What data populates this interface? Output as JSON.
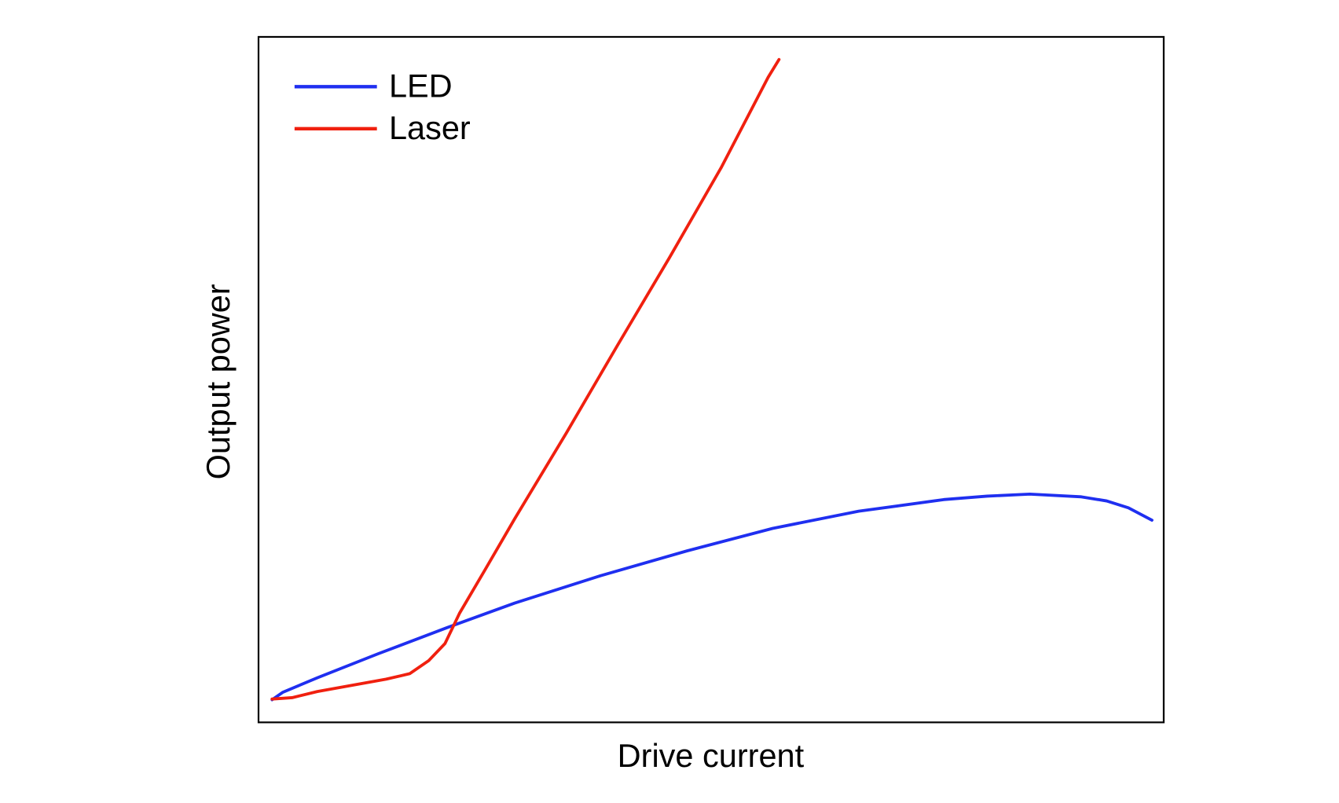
{
  "chart_data": {
    "type": "line",
    "x_label": "Drive current",
    "y_label": "Output power",
    "xlim": [
      0,
      100
    ],
    "ylim": [
      0,
      100
    ],
    "legend": "upper left",
    "series": [
      {
        "name": "LED",
        "color": "#1f2ff0",
        "x": [
          1.5,
          2.7,
          6.5,
          13.2,
          20.8,
          28.3,
          37.8,
          47.3,
          56.8,
          66.3,
          75.7,
          80.5,
          85.2,
          90.9,
          93.7,
          96.1,
          98.7
        ],
        "values": [
          3.3,
          4.4,
          6.5,
          10.0,
          13.8,
          17.4,
          21.4,
          25.0,
          28.3,
          30.8,
          32.5,
          33.0,
          33.3,
          32.9,
          32.3,
          31.3,
          29.5
        ]
      },
      {
        "name": "Laser",
        "color": "#f0200f",
        "x": [
          1.5,
          3.7,
          6.5,
          10.3,
          14.1,
          16.7,
          18.8,
          20.6,
          22.2,
          25.0,
          28.3,
          34.0,
          39.7,
          45.4,
          51.1,
          56.3,
          57.5
        ],
        "values": [
          3.4,
          3.6,
          4.5,
          5.4,
          6.3,
          7.1,
          9.0,
          11.5,
          15.9,
          22.2,
          29.7,
          42.2,
          55.1,
          67.8,
          80.9,
          94.1,
          96.7
        ]
      }
    ]
  }
}
